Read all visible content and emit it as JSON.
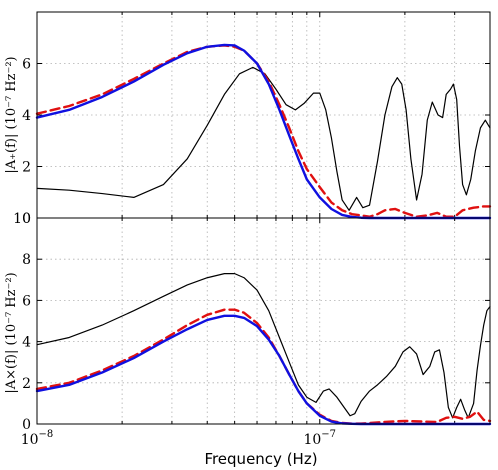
{
  "chart_data": [
    {
      "type": "line",
      "panel": "top",
      "ylabel": "|A₊(f)| (10⁻⁷ Hz⁻²)",
      "xscale": "log",
      "xlim": [
        1e-08,
        4e-07
      ],
      "ylim": [
        0,
        8
      ],
      "yticks": [
        0,
        2,
        4,
        6
      ],
      "grid": true,
      "series": [
        {
          "color": "#000000",
          "style": "solid",
          "x": [
            1e-08,
            1.3e-08,
            1.7e-08,
            2.2e-08,
            2.8e-08,
            3.4e-08,
            4e-08,
            4.6e-08,
            5.2e-08,
            5.8e-08,
            6.4e-08,
            7e-08,
            7.6e-08,
            8.2e-08,
            8.8e-08,
            9.5e-08,
            1e-07,
            1.05e-07,
            1.1e-07,
            1.15e-07,
            1.2e-07,
            1.27e-07,
            1.35e-07,
            1.42e-07,
            1.5e-07,
            1.6e-07,
            1.7e-07,
            1.8e-07,
            1.88e-07,
            1.95e-07,
            2.02e-07,
            2.1e-07,
            2.2e-07,
            2.3e-07,
            2.4e-07,
            2.5e-07,
            2.62e-07,
            2.72e-07,
            2.8e-07,
            2.9e-07,
            2.97e-07,
            3.05e-07,
            3.12e-07,
            3.2e-07,
            3.3e-07,
            3.42e-07,
            3.55e-07,
            3.7e-07,
            3.85e-07,
            4e-07
          ],
          "y": [
            1.15,
            1.08,
            0.95,
            0.8,
            1.3,
            2.3,
            3.6,
            4.8,
            5.6,
            5.85,
            5.6,
            5.0,
            4.4,
            4.2,
            4.45,
            4.85,
            4.85,
            4.2,
            3.1,
            1.8,
            0.7,
            0.3,
            0.8,
            0.4,
            0.5,
            2.2,
            4.0,
            5.1,
            5.45,
            5.2,
            4.2,
            2.3,
            0.7,
            1.7,
            3.8,
            4.5,
            4.0,
            3.9,
            4.8,
            5.0,
            5.2,
            4.6,
            2.8,
            1.3,
            0.9,
            1.5,
            2.6,
            3.5,
            3.8,
            3.5
          ]
        },
        {
          "color": "#e01010",
          "style": "dashed",
          "x": [
            1e-08,
            1.3e-08,
            1.7e-08,
            2.2e-08,
            2.8e-08,
            3.4e-08,
            4e-08,
            4.6e-08,
            5e-08,
            5.4e-08,
            6e-08,
            6.6e-08,
            7.2e-08,
            7.8e-08,
            8.4e-08,
            9e-08,
            1e-07,
            1.1e-07,
            1.2e-07,
            1.3e-07,
            1.4e-07,
            1.5e-07,
            1.6e-07,
            1.7e-07,
            1.85e-07,
            2e-07,
            2.2e-07,
            2.4e-07,
            2.6e-07,
            2.8e-07,
            3e-07,
            3.2e-07,
            3.5e-07,
            3.8e-07,
            4e-07
          ],
          "y": [
            4.05,
            4.35,
            4.8,
            5.4,
            6.0,
            6.45,
            6.65,
            6.7,
            6.65,
            6.5,
            6.0,
            5.3,
            4.4,
            3.5,
            2.6,
            1.9,
            1.2,
            0.6,
            0.3,
            0.15,
            0.1,
            0.05,
            0.15,
            0.3,
            0.35,
            0.2,
            0.05,
            0.1,
            0.2,
            0.05,
            0.05,
            0.3,
            0.4,
            0.45,
            0.45
          ]
        },
        {
          "color": "#1010e0",
          "style": "solid",
          "x": [
            1e-08,
            1.3e-08,
            1.7e-08,
            2.2e-08,
            2.8e-08,
            3.4e-08,
            4e-08,
            4.6e-08,
            5e-08,
            5.4e-08,
            6e-08,
            6.6e-08,
            7.2e-08,
            7.8e-08,
            8.4e-08,
            9e-08,
            1e-07,
            1.1e-07,
            1.2e-07,
            1.3e-07,
            1.4e-07,
            1.5e-07,
            1.7e-07,
            2e-07,
            2.5e-07,
            3e-07,
            3.5e-07,
            4e-07
          ],
          "y": [
            3.9,
            4.2,
            4.7,
            5.3,
            5.95,
            6.4,
            6.65,
            6.72,
            6.7,
            6.5,
            6.0,
            5.2,
            4.2,
            3.2,
            2.3,
            1.5,
            0.8,
            0.35,
            0.12,
            0.04,
            0.01,
            0.0,
            0.0,
            0.0,
            0.0,
            0.0,
            0.0,
            0.0
          ]
        }
      ]
    },
    {
      "type": "line",
      "panel": "bottom",
      "xlabel": "Frequency (Hz)",
      "ylabel": "|A×(f)| (10⁻⁷ Hz⁻²)",
      "xscale": "log",
      "xlim": [
        1e-08,
        4e-07
      ],
      "ylim": [
        0,
        10
      ],
      "yticks": [
        0,
        2,
        4,
        6,
        8,
        10
      ],
      "xticks": [
        1e-08,
        1e-07
      ],
      "xtick_labels": [
        [
          "10",
          "−8"
        ],
        [
          "10",
          "−7"
        ]
      ],
      "grid": true,
      "series": [
        {
          "color": "#000000",
          "style": "solid",
          "x": [
            1e-08,
            1.3e-08,
            1.7e-08,
            2.2e-08,
            2.8e-08,
            3.4e-08,
            4e-08,
            4.6e-08,
            5e-08,
            5.4e-08,
            6e-08,
            6.6e-08,
            7.2e-08,
            7.8e-08,
            8.4e-08,
            9e-08,
            9.7e-08,
            1.03e-07,
            1.08e-07,
            1.15e-07,
            1.22e-07,
            1.28e-07,
            1.33e-07,
            1.4e-07,
            1.5e-07,
            1.6e-07,
            1.72e-07,
            1.85e-07,
            1.97e-07,
            2.08e-07,
            2.2e-07,
            2.32e-07,
            2.45e-07,
            2.55e-07,
            2.65e-07,
            2.75e-07,
            2.85e-07,
            2.95e-07,
            3.05e-07,
            3.15e-07,
            3.25e-07,
            3.35e-07,
            3.5e-07,
            3.6e-07,
            3.7e-07,
            3.8e-07,
            3.9e-07,
            4e-07
          ],
          "y": [
            3.85,
            4.2,
            4.8,
            5.5,
            6.2,
            6.75,
            7.1,
            7.3,
            7.3,
            7.1,
            6.5,
            5.5,
            4.2,
            3.0,
            1.9,
            1.3,
            1.05,
            1.6,
            1.7,
            1.3,
            0.8,
            0.4,
            0.5,
            1.1,
            1.6,
            1.9,
            2.3,
            2.8,
            3.5,
            3.75,
            3.4,
            2.4,
            2.8,
            3.5,
            3.6,
            2.5,
            0.8,
            0.3,
            0.8,
            1.2,
            0.7,
            0.3,
            1.0,
            2.6,
            3.8,
            4.8,
            5.5,
            5.7
          ]
        },
        {
          "color": "#e01010",
          "style": "dashed",
          "x": [
            1e-08,
            1.3e-08,
            1.7e-08,
            2.2e-08,
            2.8e-08,
            3.4e-08,
            4e-08,
            4.6e-08,
            5e-08,
            5.4e-08,
            6e-08,
            6.6e-08,
            7.2e-08,
            7.8e-08,
            8.4e-08,
            9e-08,
            1e-07,
            1.1e-07,
            1.2e-07,
            1.3e-07,
            1.4e-07,
            1.5e-07,
            1.7e-07,
            2e-07,
            2.3e-07,
            2.6e-07,
            2.8e-07,
            3e-07,
            3.2e-07,
            3.4e-07,
            3.6e-07,
            3.8e-07,
            4e-07
          ],
          "y": [
            1.7,
            2.0,
            2.6,
            3.3,
            4.1,
            4.8,
            5.3,
            5.55,
            5.55,
            5.4,
            4.9,
            4.2,
            3.3,
            2.4,
            1.6,
            1.0,
            0.45,
            0.15,
            0.05,
            0.02,
            0.02,
            0.05,
            0.1,
            0.15,
            0.12,
            0.1,
            0.3,
            0.35,
            0.25,
            0.35,
            0.6,
            0.2,
            0.15
          ]
        },
        {
          "color": "#1010e0",
          "style": "solid",
          "x": [
            1e-08,
            1.3e-08,
            1.7e-08,
            2.2e-08,
            2.8e-08,
            3.4e-08,
            4e-08,
            4.6e-08,
            5e-08,
            5.4e-08,
            6e-08,
            6.6e-08,
            7.2e-08,
            7.8e-08,
            8.4e-08,
            9e-08,
            1e-07,
            1.1e-07,
            1.2e-07,
            1.3e-07,
            1.4e-07,
            1.6e-07,
            2e-07,
            2.5e-07,
            3e-07,
            3.5e-07,
            4e-07
          ],
          "y": [
            1.6,
            1.9,
            2.5,
            3.2,
            4.0,
            4.6,
            5.05,
            5.25,
            5.25,
            5.15,
            4.75,
            4.1,
            3.3,
            2.4,
            1.6,
            1.0,
            0.4,
            0.12,
            0.03,
            0.01,
            0.0,
            0.0,
            0.0,
            0.0,
            0.0,
            0.0,
            0.0
          ]
        }
      ]
    }
  ]
}
